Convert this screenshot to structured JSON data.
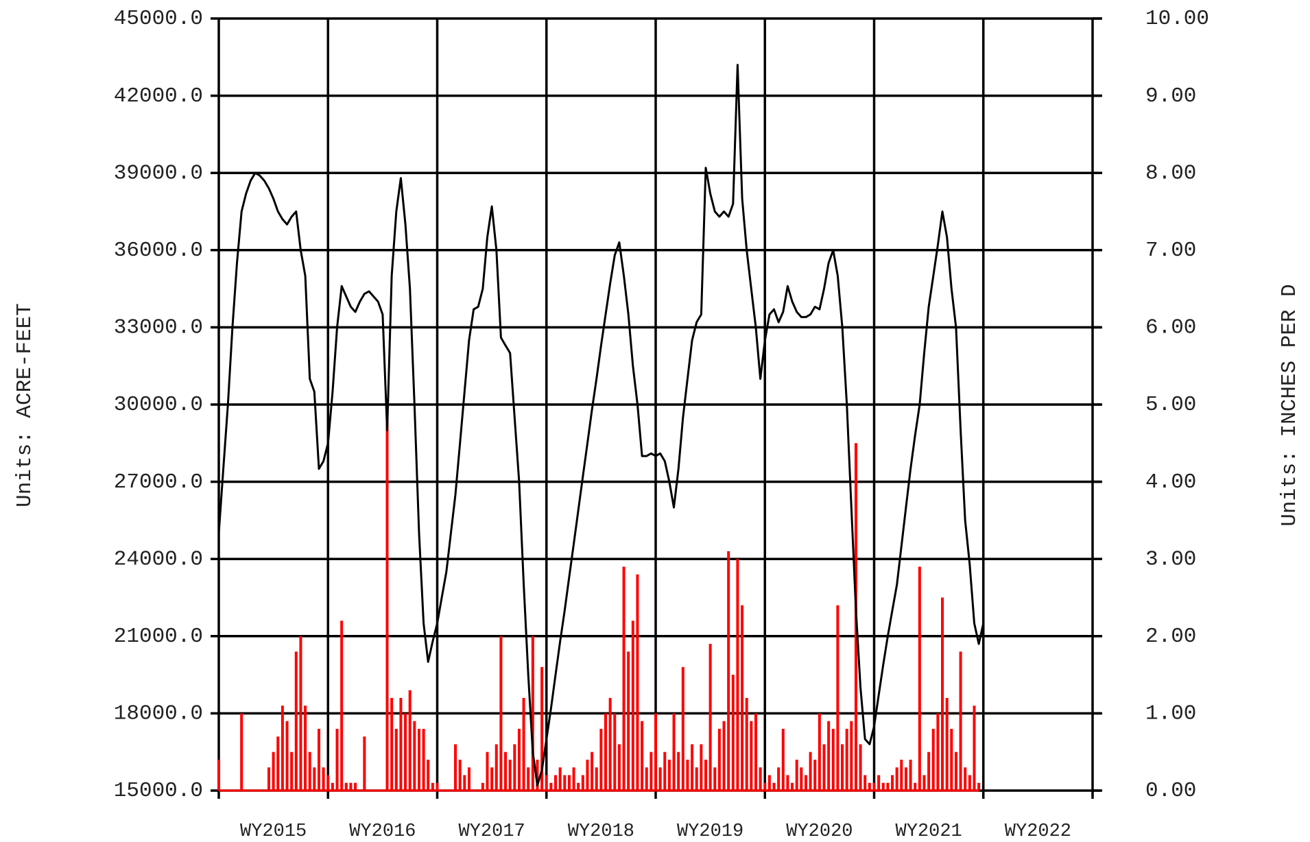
{
  "chart_data": {
    "type": "line-bar",
    "axis_label_left": "Units: ACRE-FEET",
    "axis_label_right": "Units: INCHES PER D",
    "categories": [
      null,
      null,
      null,
      null,
      null,
      null,
      null,
      null,
      null,
      null,
      null,
      null,
      "WY2015",
      null,
      null,
      null,
      null,
      null,
      null,
      null,
      null,
      null,
      null,
      null,
      null,
      null,
      null,
      null,
      null,
      null,
      null,
      null,
      null,
      null,
      null,
      null,
      "WY2016",
      null,
      null,
      null,
      null,
      null,
      null,
      null,
      null,
      null,
      null,
      null,
      null,
      null,
      null,
      null,
      null,
      null,
      null,
      null,
      null,
      null,
      null,
      null,
      "WY2017",
      null,
      null,
      null,
      null,
      null,
      null,
      null,
      null,
      null,
      null,
      null,
      null,
      null,
      null,
      null,
      null,
      null,
      null,
      null,
      null,
      null,
      null,
      null,
      "WY2018",
      null,
      null,
      null,
      null,
      null,
      null,
      null,
      null,
      null,
      null,
      null,
      null,
      null,
      null,
      null,
      null,
      null,
      null,
      null,
      null,
      null,
      null,
      null,
      "WY2019",
      null,
      null,
      null,
      null,
      null,
      null,
      null,
      null,
      null,
      null,
      null,
      null,
      null,
      null,
      null,
      null,
      null,
      null,
      null,
      null,
      null,
      null,
      null,
      "WY2020",
      null,
      null,
      null,
      null,
      null,
      null,
      null,
      null,
      null,
      null,
      null,
      null,
      null,
      null,
      null,
      null,
      null,
      null,
      null,
      null,
      null,
      null,
      null,
      "WY2021",
      null,
      null,
      null,
      null,
      null,
      null,
      null,
      null,
      null,
      null,
      null,
      null,
      null,
      null,
      null,
      null,
      null,
      null,
      null,
      null,
      null,
      null,
      null,
      "WY2022",
      null,
      null,
      null,
      null,
      null,
      null,
      null,
      null,
      null,
      null,
      null
    ],
    "series": [
      {
        "type": "line",
        "color": "#000000",
        "values": [
          25000,
          27500,
          30000,
          33000,
          35500,
          37500,
          38200,
          38700,
          39000,
          38900,
          38700,
          38400,
          38000,
          37500,
          37200,
          37000,
          37300,
          37500,
          36000,
          35000,
          31000,
          30500,
          27500,
          27800,
          28500,
          30500,
          33000,
          34600,
          34200,
          33800,
          33600,
          34000,
          34300,
          34400,
          34200,
          34000,
          33500,
          29000,
          35000,
          37500,
          38800,
          37000,
          34500,
          30000,
          25000,
          21500,
          20000,
          20800,
          21500,
          22500,
          23500,
          25000,
          26500,
          28500,
          30500,
          32500,
          33700,
          33800,
          34500,
          36500,
          37700,
          36000,
          32600,
          32300,
          32000,
          29500,
          27000,
          23000,
          19500,
          16500,
          15200,
          15800,
          17000,
          18200,
          19500,
          20800,
          22000,
          23300,
          24600,
          25900,
          27200,
          28500,
          29800,
          31000,
          32300,
          33500,
          34700,
          35800,
          36300,
          35000,
          33500,
          31500,
          30000,
          28000,
          28000,
          28100,
          28000,
          28100,
          27800,
          27000,
          26000,
          27500,
          29500,
          31000,
          32500,
          33200,
          33500,
          39200,
          38200,
          37500,
          37300,
          37500,
          37300,
          37800,
          43200,
          38000,
          36000,
          34500,
          33000,
          31000,
          32500,
          33500,
          33700,
          33200,
          33600,
          34600,
          34000,
          33600,
          33400,
          33400,
          33500,
          33800,
          33700,
          34500,
          35500,
          36000,
          35000,
          33000,
          30000,
          26000,
          22000,
          19000,
          17000,
          16800,
          17500,
          18700,
          19900,
          21000,
          22000,
          23000,
          24500,
          26000,
          27500,
          28800,
          30000,
          32000,
          33800,
          35000,
          36200,
          37500,
          36500,
          34500,
          33000,
          29000,
          25500,
          23800,
          21500,
          20700,
          21500,
          null,
          null,
          null,
          null,
          null,
          null,
          null,
          null,
          null,
          null,
          null,
          null,
          null,
          null,
          null,
          null,
          null,
          null,
          null,
          null,
          null,
          null,
          null
        ]
      },
      {
        "type": "bar",
        "axis": "y2",
        "color": "#ff0000",
        "values": [
          0.4,
          0,
          0,
          0,
          0,
          1.0,
          0,
          0,
          0,
          0,
          0,
          0.3,
          0.5,
          0.7,
          1.1,
          0.9,
          0.5,
          1.8,
          2.0,
          1.1,
          0.5,
          0.3,
          0.8,
          0.3,
          0.2,
          0.1,
          0.8,
          2.2,
          0.1,
          0.1,
          0.1,
          0,
          0.7,
          0,
          0,
          0,
          0,
          4.9,
          1.2,
          0.8,
          1.2,
          1.0,
          1.3,
          0.9,
          0.8,
          0.8,
          0.4,
          0.1,
          0.1,
          0,
          0,
          0,
          0.6,
          0.4,
          0.2,
          0.3,
          0,
          0,
          0.1,
          0.5,
          0.3,
          0.6,
          2.0,
          0.5,
          0.4,
          0.6,
          0.8,
          1.2,
          0.3,
          2.0,
          0.4,
          1.6,
          0.2,
          0.1,
          0.2,
          0.3,
          0.2,
          0.2,
          0.3,
          0.1,
          0.2,
          0.4,
          0.5,
          0.3,
          0.8,
          1.0,
          1.2,
          1.0,
          0.6,
          2.9,
          1.8,
          2.2,
          2.8,
          0.9,
          0.3,
          0.5,
          1.0,
          0.3,
          0.5,
          0.4,
          1.0,
          0.5,
          1.6,
          0.4,
          0.6,
          0.3,
          0.6,
          0.4,
          1.9,
          0.3,
          0.8,
          0.9,
          3.1,
          1.5,
          3.0,
          2.4,
          1.2,
          0.9,
          1.0,
          0.3,
          0.1,
          0.2,
          0.1,
          0.3,
          0.8,
          0.2,
          0.1,
          0.4,
          0.3,
          0.2,
          0.5,
          0.4,
          1.0,
          0.6,
          0.9,
          0.8,
          2.4,
          0.6,
          0.8,
          0.9,
          4.5,
          0.6,
          0.2,
          0.1,
          0.1,
          0.2,
          0.1,
          0.1,
          0.2,
          0.3,
          0.4,
          0.3,
          0.4,
          0.1,
          2.9,
          0.2,
          0.5,
          0.8,
          1.0,
          2.5,
          1.2,
          0.8,
          0.5,
          1.8,
          0.3,
          0.2,
          1.1,
          0.1,
          null,
          null,
          null,
          null,
          null,
          null,
          null,
          null,
          null,
          null,
          null,
          null,
          null,
          null,
          null,
          null,
          null,
          null,
          null,
          null,
          null,
          null,
          null,
          null
        ]
      }
    ],
    "ylim": [
      15000,
      45000
    ],
    "yticks": [
      {
        "value": 15000,
        "label": "15000.0"
      },
      {
        "value": 18000,
        "label": "18000.0"
      },
      {
        "value": 21000,
        "label": "21000.0"
      },
      {
        "value": 24000,
        "label": "24000.0"
      },
      {
        "value": 27000,
        "label": "27000.0"
      },
      {
        "value": 30000,
        "label": "30000.0"
      },
      {
        "value": 33000,
        "label": "33000.0"
      },
      {
        "value": 36000,
        "label": "36000.0"
      },
      {
        "value": 39000,
        "label": "39000.0"
      },
      {
        "value": 42000,
        "label": "42000.0"
      },
      {
        "value": 45000,
        "label": "45000.0"
      }
    ],
    "y2lim": [
      0,
      10
    ],
    "y2ticks": [
      {
        "value": 0,
        "label": "0.00"
      },
      {
        "value": 1,
        "label": "1.00"
      },
      {
        "value": 2,
        "label": "2.00"
      },
      {
        "value": 3,
        "label": "3.00"
      },
      {
        "value": 4,
        "label": "4.00"
      },
      {
        "value": 5,
        "label": "5.00"
      },
      {
        "value": 6,
        "label": "6.00"
      },
      {
        "value": 7,
        "label": "7.00"
      },
      {
        "value": 8,
        "label": "8.00"
      },
      {
        "value": 9,
        "label": "9.00"
      },
      {
        "value": 10,
        "label": "10.00"
      }
    ],
    "grid": true
  }
}
